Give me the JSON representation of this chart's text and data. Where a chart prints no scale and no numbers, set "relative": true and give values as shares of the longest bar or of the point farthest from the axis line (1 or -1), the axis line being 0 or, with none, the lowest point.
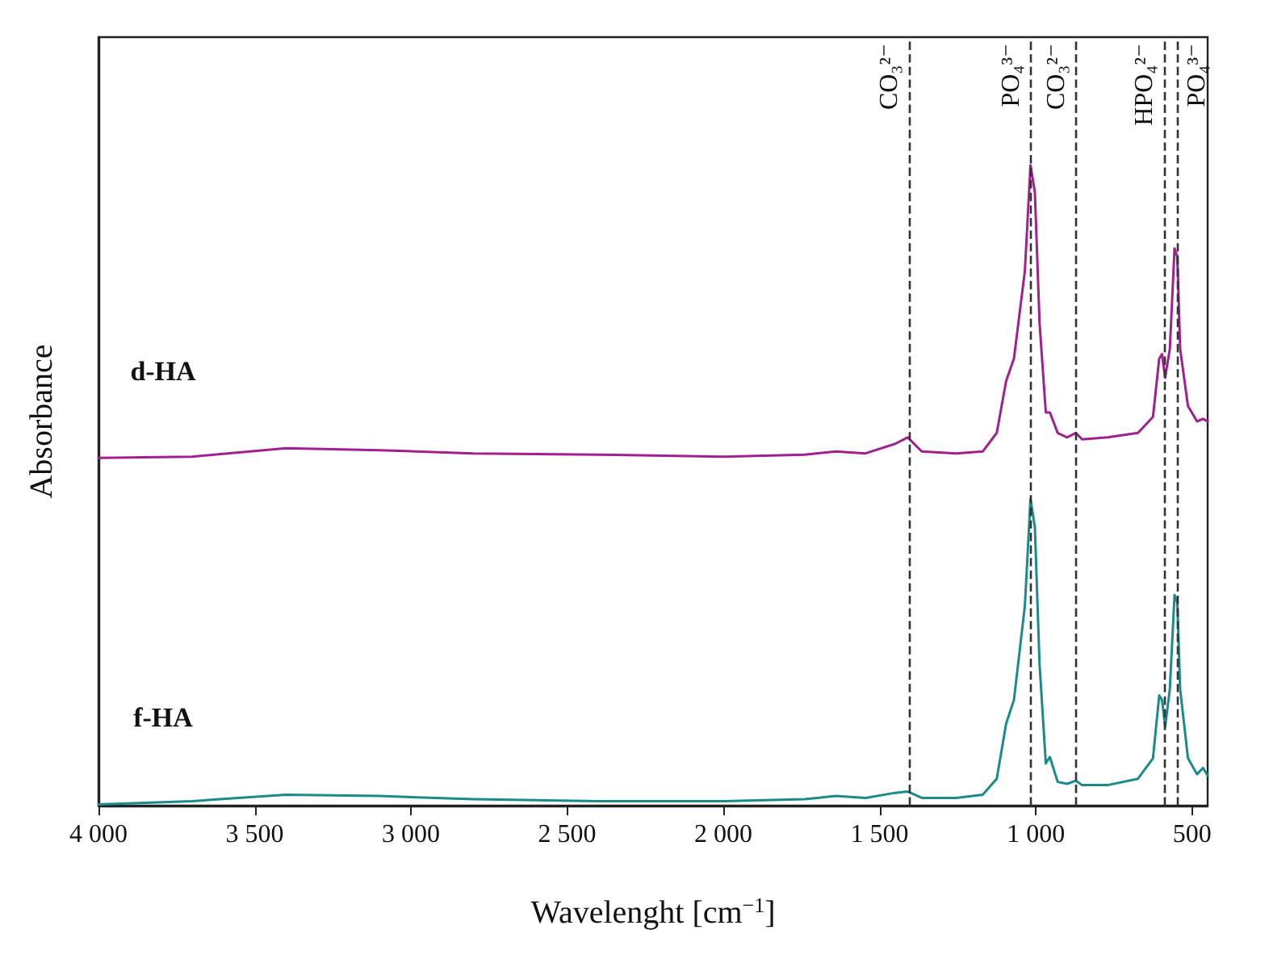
{
  "chart_data": {
    "type": "line",
    "relative": true,
    "xlabel": "Wavelenght [cm$^{−1}$]",
    "ylabel": "Absorbance",
    "xlim": [
      4000,
      450
    ],
    "xticks": [
      {
        "value": 4000,
        "label": "4 000"
      },
      {
        "value": 3500,
        "label": "3 500"
      },
      {
        "value": 3000,
        "label": "3 000"
      },
      {
        "value": 2500,
        "label": "2 500"
      },
      {
        "value": 2000,
        "label": "2 000"
      },
      {
        "value": 1500,
        "label": "1 500"
      },
      {
        "value": 1000,
        "label": "1 000"
      },
      {
        "value": 500,
        "label": "500"
      }
    ],
    "grid": false,
    "legend": false,
    "marker": "none",
    "line_style": "solid",
    "series": [
      {
        "name": "d-HA",
        "color": "#a0208e",
        "x": [
          4000,
          3700,
          3400,
          3100,
          2800,
          2400,
          2000,
          1740,
          1640,
          1545,
          1450,
          1410,
          1365,
          1255,
          1170,
          1125,
          1095,
          1070,
          1035,
          1017,
          1003,
          988,
          968,
          955,
          930,
          900,
          872,
          852,
          770,
          673,
          625,
          605,
          596,
          586,
          571,
          556,
          547,
          538,
          513,
          484,
          465,
          450
        ],
        "values": [
          0.543,
          0.545,
          0.558,
          0.555,
          0.55,
          0.548,
          0.545,
          0.548,
          0.553,
          0.55,
          0.565,
          0.575,
          0.553,
          0.55,
          0.553,
          0.582,
          0.663,
          0.698,
          0.835,
          1,
          0.958,
          0.754,
          0.614,
          0.614,
          0.582,
          0.575,
          0.582,
          0.572,
          0.575,
          0.582,
          0.607,
          0.698,
          0.705,
          0.668,
          0.713,
          0.87,
          0.857,
          0.713,
          0.624,
          0.6,
          0.604,
          0.6
        ]
      },
      {
        "name": "f-HA",
        "color": "#1a8a8a",
        "x": [
          4000,
          3700,
          3400,
          3100,
          2800,
          2400,
          2000,
          1740,
          1640,
          1545,
          1450,
          1410,
          1365,
          1255,
          1170,
          1125,
          1095,
          1070,
          1035,
          1017,
          1003,
          988,
          968,
          955,
          930,
          900,
          872,
          852,
          770,
          673,
          625,
          605,
          596,
          586,
          571,
          556,
          547,
          538,
          513,
          484,
          465,
          450
        ],
        "values": [
          0.002,
          0.007,
          0.017,
          0.015,
          0.01,
          0.007,
          0.007,
          0.01,
          0.015,
          0.012,
          0.02,
          0.022,
          0.012,
          0.012,
          0.017,
          0.042,
          0.128,
          0.165,
          0.312,
          0.479,
          0.435,
          0.221,
          0.066,
          0.076,
          0.037,
          0.034,
          0.039,
          0.032,
          0.032,
          0.042,
          0.074,
          0.172,
          0.165,
          0.123,
          0.182,
          0.329,
          0.317,
          0.182,
          0.074,
          0.049,
          0.059,
          0.047
        ]
      }
    ],
    "ref_lines": [
      {
        "axis": "x",
        "value": 1405,
        "label": "CO₃²⁻",
        "color": "#333333",
        "line_style": "dashed"
      },
      {
        "axis": "x",
        "value": 1015,
        "label": "PO₄³⁻",
        "color": "#333333",
        "line_style": "dashed"
      },
      {
        "axis": "x",
        "value": 870,
        "label": "CO₃²⁻",
        "color": "#333333",
        "line_style": "dashed"
      },
      {
        "axis": "x",
        "value": 590,
        "label": "HPO₄²⁻",
        "color": "#333333",
        "line_style": "dashed"
      },
      {
        "axis": "x",
        "value": 545,
        "label": "PO₄³⁻",
        "color": "#333333",
        "line_style": "dashed"
      }
    ]
  }
}
